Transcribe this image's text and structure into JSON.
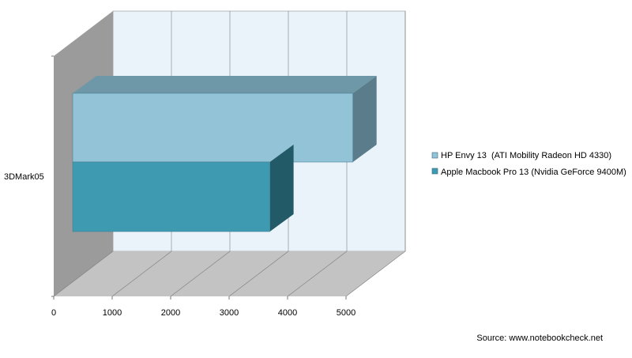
{
  "chart_data": {
    "type": "bar",
    "orientation": "horizontal",
    "style": "3d",
    "categories": [
      "3DMark05"
    ],
    "series": [
      {
        "name": "HP Envy 13  (ATI Mobility Radeon HD 4330)",
        "values": [
          5050
        ],
        "color": "#92c3d6",
        "side_color": "#5b7c8a",
        "top_color": "#6e98a8"
      },
      {
        "name": "Apple Macbook Pro 13 (Nvidia GeForce 9400M)",
        "values": [
          3630
        ],
        "color": "#3d9ab0",
        "side_color": "#235a68",
        "top_color": "#2f7a8c"
      }
    ],
    "xlim": [
      0,
      5000
    ],
    "xticks": [
      "0",
      "1000",
      "2000",
      "3000",
      "4000",
      "5000"
    ],
    "grid": true,
    "legend_position": "right"
  },
  "source": "Source: www.notebookcheck.net",
  "colors": {
    "back_wall": "#eaf3fa",
    "side_wall": "#9b9b9b",
    "floor": "#c3c3c3",
    "grid": "#7d7d7d"
  }
}
